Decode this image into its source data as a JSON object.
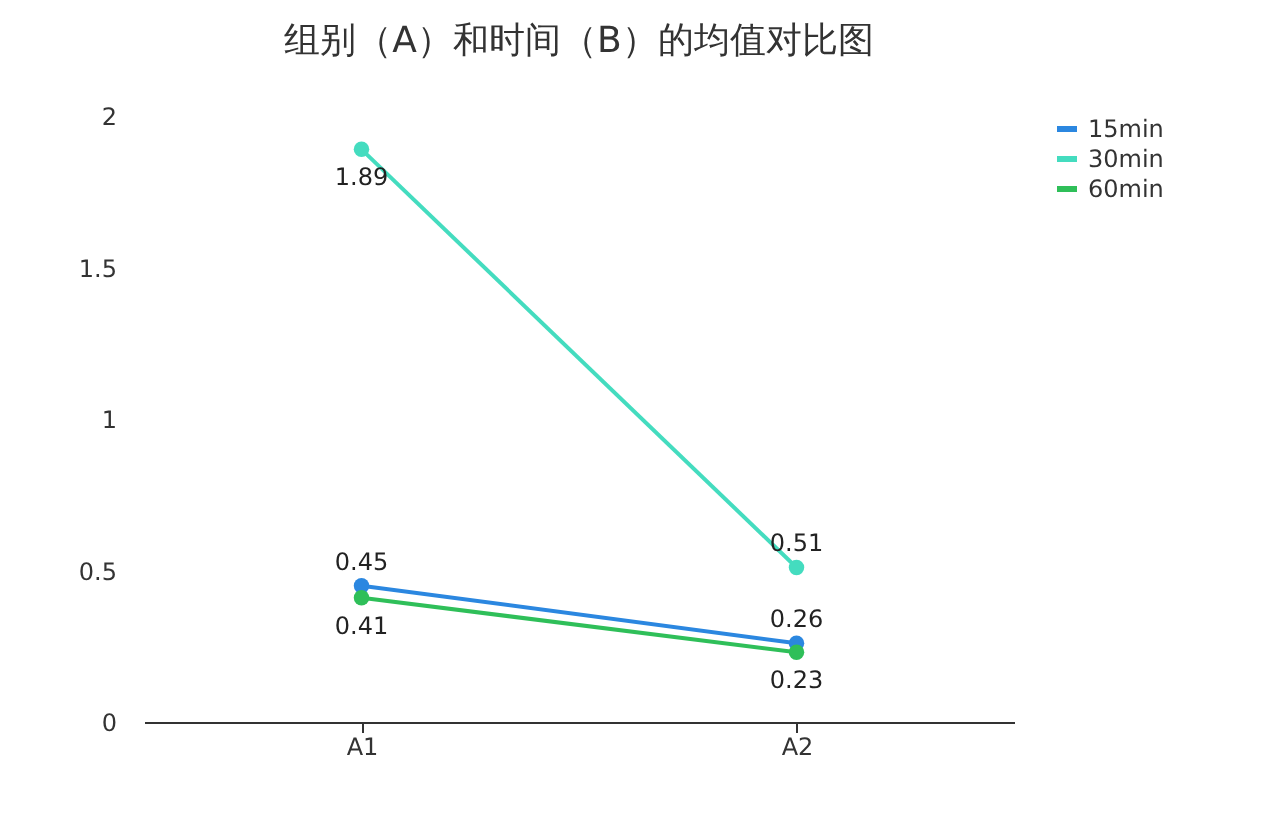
{
  "chart_data": {
    "type": "line",
    "title": "组别（A）和时间（B）的均值对比图",
    "categories": [
      "A1",
      "A2"
    ],
    "series": [
      {
        "name": "15min",
        "color": "#2b87e0",
        "values": [
          0.45,
          0.26
        ]
      },
      {
        "name": "30min",
        "color": "#44dcbf",
        "values": [
          1.89,
          0.51
        ]
      },
      {
        "name": "60min",
        "color": "#2fbf59",
        "values": [
          0.41,
          0.23
        ]
      }
    ],
    "ylim": [
      0,
      2
    ],
    "yticks": [
      0,
      0.5,
      1,
      1.5,
      2
    ],
    "grid": false,
    "legend": "right",
    "marker": "circle",
    "line_style": "solid",
    "data_labels": true
  }
}
